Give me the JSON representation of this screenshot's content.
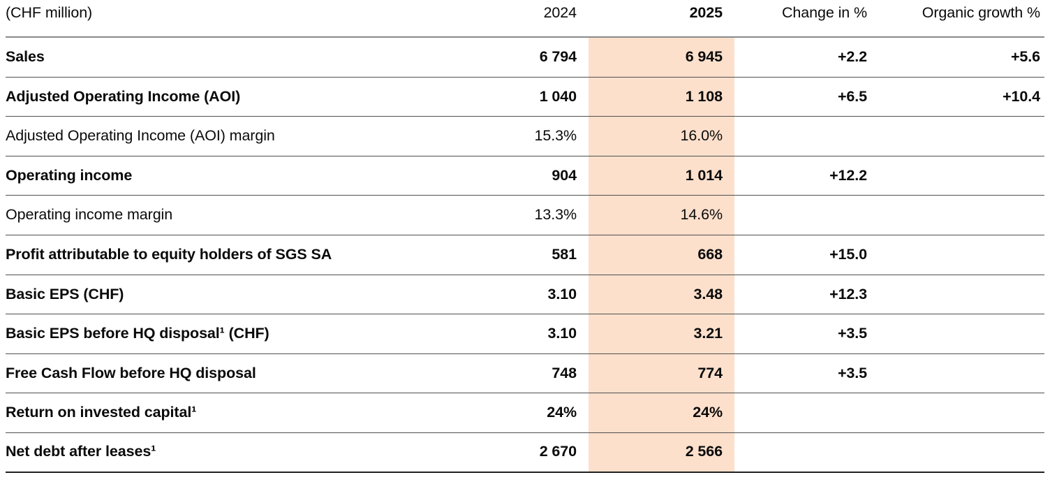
{
  "table": {
    "unit_label": "(CHF million)",
    "highlight_color": "#fce0cc",
    "header": {
      "col_2024": "2024",
      "col_2025": "2025",
      "col_change": "Change in %",
      "col_organic": "Organic growth %"
    },
    "rows": [
      {
        "label": "Sales",
        "bold": true,
        "y2024": "6 794",
        "y2025": "6 945",
        "change": "+2.2",
        "organic": "+5.6"
      },
      {
        "label": "Adjusted Operating Income (AOI)",
        "bold": true,
        "y2024": "1 040",
        "y2025": "1 108",
        "change": "+6.5",
        "organic": "+10.4"
      },
      {
        "label": "Adjusted Operating Income (AOI) margin",
        "bold": false,
        "y2024": "15.3%",
        "y2025": "16.0%",
        "change": "",
        "organic": ""
      },
      {
        "label": "Operating income",
        "bold": true,
        "y2024": "904",
        "y2025": "1 014",
        "change": "+12.2",
        "organic": ""
      },
      {
        "label": "Operating income margin",
        "bold": false,
        "y2024": "13.3%",
        "y2025": "14.6%",
        "change": "",
        "organic": ""
      },
      {
        "label": "Profit attributable to equity holders of SGS SA",
        "bold": true,
        "y2024": "581",
        "y2025": "668",
        "change": "+15.0",
        "organic": ""
      },
      {
        "label": "Basic EPS (CHF)",
        "bold": true,
        "y2024": "3.10",
        "y2025": "3.48",
        "change": "+12.3",
        "organic": ""
      },
      {
        "label": "Basic EPS before HQ disposal¹ (CHF)",
        "bold": true,
        "y2024": "3.10",
        "y2025": "3.21",
        "change": "+3.5",
        "organic": ""
      },
      {
        "label": "Free Cash Flow before HQ disposal",
        "bold": true,
        "y2024": "748",
        "y2025": "774",
        "change": "+3.5",
        "organic": ""
      },
      {
        "label": "Return on invested capital¹",
        "bold": true,
        "y2024": "24%",
        "y2025": "24%",
        "change": "",
        "organic": ""
      },
      {
        "label": "Net debt after leases¹",
        "bold": true,
        "y2024": "2 670",
        "y2025": "2 566",
        "change": "",
        "organic": ""
      }
    ]
  }
}
